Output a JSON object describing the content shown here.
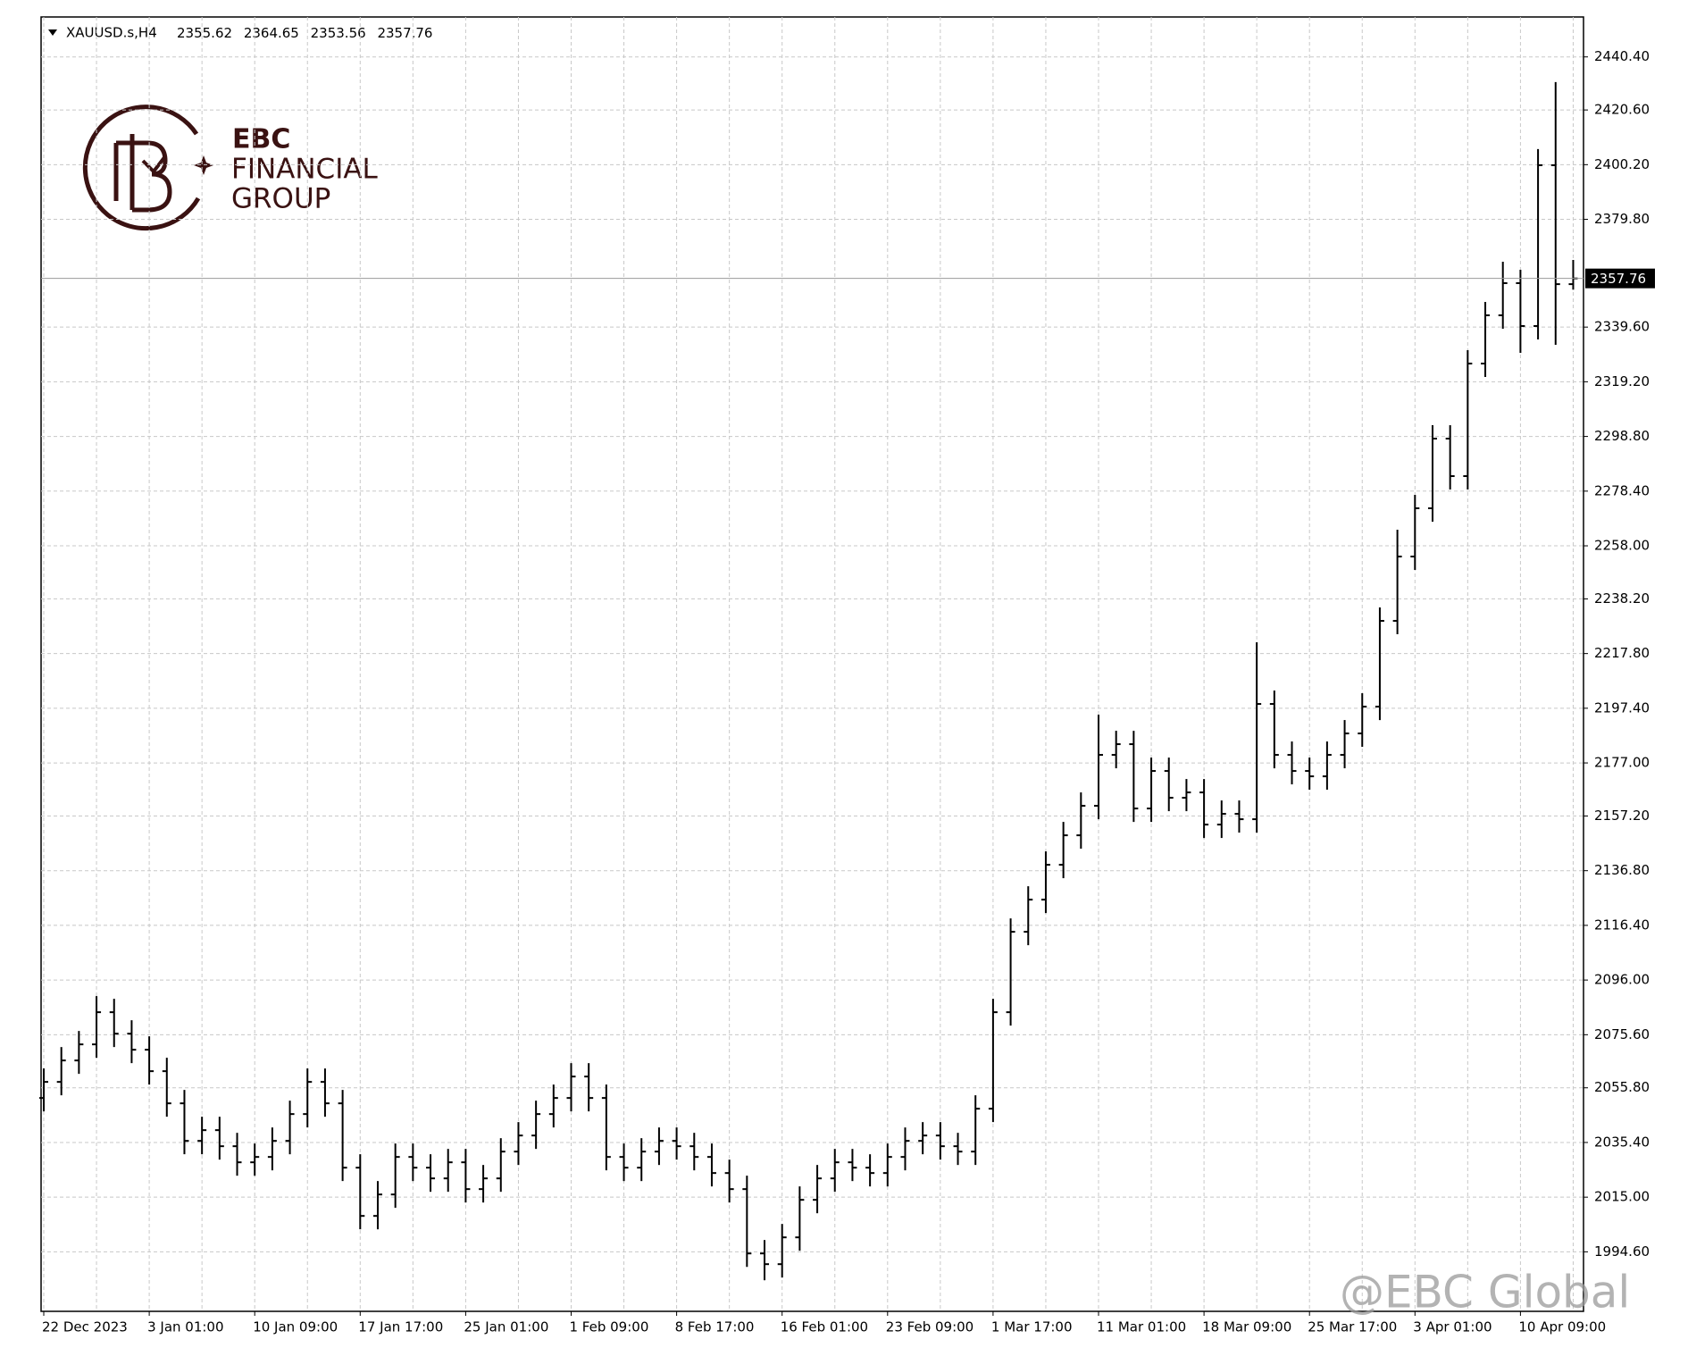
{
  "chart_data": {
    "type": "ohlc",
    "symbol": "XAUUSD.s,H4",
    "brand": {
      "line1": "EBC",
      "line2": "FINANCIAL",
      "line3": "GROUP"
    },
    "watermark": "@EBC Global",
    "color": "#000000",
    "grid": true,
    "ylim": [
      1972.4,
      2455.3
    ],
    "yticks": [
      {
        "value": 2440.4,
        "label": "2440.40"
      },
      {
        "value": 2420.6,
        "label": "2420.60"
      },
      {
        "value": 2400.2,
        "label": "2400.20"
      },
      {
        "value": 2379.8,
        "label": "2379.80"
      },
      {
        "value": 2339.6,
        "label": "2339.60"
      },
      {
        "value": 2319.2,
        "label": "2319.20"
      },
      {
        "value": 2298.8,
        "label": "2298.80"
      },
      {
        "value": 2278.4,
        "label": "2278.40"
      },
      {
        "value": 2258.0,
        "label": "2258.00"
      },
      {
        "value": 2238.2,
        "label": "2238.20"
      },
      {
        "value": 2217.8,
        "label": "2217.80"
      },
      {
        "value": 2197.4,
        "label": "2197.40"
      },
      {
        "value": 2177.0,
        "label": "2177.00"
      },
      {
        "value": 2157.2,
        "label": "2157.20"
      },
      {
        "value": 2136.8,
        "label": "2136.80"
      },
      {
        "value": 2116.4,
        "label": "2116.40"
      },
      {
        "value": 2096.0,
        "label": "2096.00"
      },
      {
        "value": 2075.6,
        "label": "2075.60"
      },
      {
        "value": 2055.8,
        "label": "2055.80"
      },
      {
        "value": 2035.4,
        "label": "2035.40"
      },
      {
        "value": 2015.0,
        "label": "2015.00"
      },
      {
        "value": 1994.6,
        "label": "1994.60"
      }
    ],
    "categories": [
      "22 Dec 2023",
      null,
      null,
      null,
      null,
      null,
      "3 Jan 01:00",
      null,
      null,
      null,
      null,
      null,
      "10 Jan 09:00",
      null,
      null,
      null,
      null,
      null,
      "17 Jan 17:00",
      null,
      null,
      null,
      null,
      null,
      "25 Jan 01:00",
      null,
      null,
      null,
      null,
      null,
      "1 Feb 09:00",
      null,
      null,
      null,
      null,
      null,
      "8 Feb 17:00",
      null,
      null,
      null,
      null,
      null,
      "16 Feb 01:00",
      null,
      null,
      null,
      null,
      null,
      "23 Feb 09:00",
      null,
      null,
      null,
      null,
      null,
      "1 Mar 17:00",
      null,
      null,
      null,
      null,
      null,
      "11 Mar 01:00",
      null,
      null,
      null,
      null,
      null,
      "18 Mar 09:00",
      null,
      null,
      null,
      null,
      null,
      "25 Mar 17:00",
      null,
      null,
      null,
      null,
      null,
      "3 Apr 01:00",
      null,
      null,
      null,
      null,
      null,
      "10 Apr 09:00",
      null,
      null,
      null
    ],
    "open": [
      2052,
      2058,
      2066,
      2072,
      2084,
      2076,
      2070,
      2062,
      2050,
      2036,
      2040,
      2034,
      2028,
      2030,
      2036,
      2046,
      2058,
      2050,
      2026,
      2008,
      2016,
      2030,
      2026,
      2022,
      2028,
      2018,
      2022,
      2032,
      2038,
      2046,
      2052,
      2060,
      2052,
      2030,
      2026,
      2032,
      2036,
      2034,
      2030,
      2024,
      2018,
      1994,
      1990,
      2000,
      2014,
      2022,
      2028,
      2026,
      2024,
      2030,
      2036,
      2038,
      2034,
      2032,
      2048,
      2084,
      2114,
      2126,
      2139,
      2150,
      2161,
      2180,
      2184,
      2160,
      2174,
      2164,
      2166,
      2154,
      2158,
      2156,
      2199,
      2180,
      2174,
      2172,
      2180,
      2188,
      2198,
      2230,
      2254,
      2272,
      2298,
      2284,
      2326,
      2344,
      2356,
      2340,
      2400,
      2355.62
    ],
    "high": [
      2063,
      2071,
      2077,
      2090,
      2089,
      2081,
      2075,
      2067,
      2055,
      2045,
      2045,
      2039,
      2035,
      2041,
      2051,
      2063,
      2063,
      2055,
      2031,
      2021,
      2035,
      2035,
      2031,
      2033,
      2033,
      2027,
      2037,
      2043,
      2051,
      2057,
      2065,
      2065,
      2057,
      2035,
      2037,
      2041,
      2041,
      2039,
      2035,
      2029,
      2023,
      1999,
      2005,
      2019,
      2027,
      2033,
      2033,
      2031,
      2035,
      2041,
      2043,
      2043,
      2039,
      2053,
      2089,
      2119,
      2131,
      2144,
      2155,
      2166,
      2195,
      2189,
      2189,
      2179,
      2179,
      2171,
      2171,
      2163,
      2163,
      2222,
      2204,
      2185,
      2179,
      2185,
      2193,
      2203,
      2235,
      2264,
      2277,
      2303,
      2303,
      2331,
      2349,
      2364,
      2361,
      2406,
      2431,
      2364.65
    ],
    "low": [
      2047,
      2053,
      2061,
      2067,
      2071,
      2065,
      2057,
      2045,
      2031,
      2031,
      2029,
      2023,
      2023,
      2025,
      2031,
      2041,
      2045,
      2021,
      2003,
      2003,
      2011,
      2021,
      2017,
      2017,
      2013,
      2013,
      2017,
      2027,
      2033,
      2041,
      2047,
      2047,
      2025,
      2021,
      2021,
      2027,
      2029,
      2025,
      2019,
      2013,
      1989,
      1984,
      1985,
      1995,
      2009,
      2017,
      2021,
      2019,
      2019,
      2025,
      2031,
      2029,
      2027,
      2027,
      2043,
      2079,
      2109,
      2121,
      2134,
      2145,
      2156,
      2175,
      2155,
      2155,
      2159,
      2159,
      2149,
      2149,
      2151,
      2151,
      2175,
      2169,
      2167,
      2167,
      2175,
      2183,
      2193,
      2225,
      2249,
      2267,
      2279,
      2279,
      2321,
      2339,
      2330,
      2335,
      2333,
      2353.56
    ],
    "close": [
      2058,
      2066,
      2072,
      2084,
      2076,
      2070,
      2062,
      2050,
      2036,
      2040,
      2034,
      2028,
      2030,
      2036,
      2046,
      2058,
      2050,
      2026,
      2008,
      2016,
      2030,
      2026,
      2022,
      2028,
      2018,
      2022,
      2032,
      2038,
      2046,
      2052,
      2060,
      2052,
      2030,
      2026,
      2032,
      2036,
      2034,
      2030,
      2024,
      2018,
      1994,
      1990,
      2000,
      2014,
      2022,
      2028,
      2026,
      2024,
      2030,
      2036,
      2038,
      2034,
      2032,
      2048,
      2084,
      2114,
      2126,
      2139,
      2150,
      2161,
      2180,
      2184,
      2160,
      2174,
      2164,
      2166,
      2154,
      2158,
      2156,
      2199,
      2180,
      2174,
      2172,
      2180,
      2188,
      2198,
      2230,
      2254,
      2272,
      2298,
      2284,
      2326,
      2344,
      2356,
      2340,
      2400,
      2355.62,
      2357.76
    ]
  }
}
